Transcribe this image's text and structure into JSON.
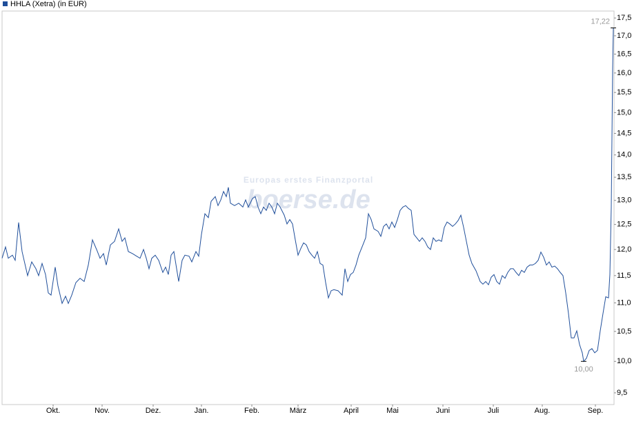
{
  "chart_data": {
    "type": "line",
    "log_y": true,
    "grid": false,
    "legend": "top-left",
    "watermark": [
      "Europas erstes Finanzportal",
      "boerse.de"
    ],
    "max_label": "17,22",
    "min_label": "10,00",
    "xlim": [
      3,
      890
    ],
    "ylim": [
      9.32,
      17.7
    ],
    "xticks": [
      {
        "value": 77,
        "label": "Okt."
      },
      {
        "value": 148,
        "label": "Nov."
      },
      {
        "value": 222,
        "label": "Dez."
      },
      {
        "value": 292,
        "label": "Jan."
      },
      {
        "value": 365,
        "label": "Feb."
      },
      {
        "value": 432,
        "label": "März"
      },
      {
        "value": 509,
        "label": "April"
      },
      {
        "value": 569,
        "label": "Mai"
      },
      {
        "value": 642,
        "label": "Juni"
      },
      {
        "value": 715,
        "label": "Juli"
      },
      {
        "value": 786,
        "label": "Aug."
      },
      {
        "value": 863,
        "label": "Sep."
      }
    ],
    "yticks": [
      {
        "value": 9.5,
        "label": "9,5"
      },
      {
        "value": 10,
        "label": "10,0"
      },
      {
        "value": 10.5,
        "label": "10,5"
      },
      {
        "value": 11,
        "label": "11,0"
      },
      {
        "value": 11.5,
        "label": "11,5"
      },
      {
        "value": 12,
        "label": "12,0"
      },
      {
        "value": 12.5,
        "label": "12,5"
      },
      {
        "value": 13,
        "label": "13,0"
      },
      {
        "value": 13.5,
        "label": "13,5"
      },
      {
        "value": 14,
        "label": "14,0"
      },
      {
        "value": 14.5,
        "label": "14,5"
      },
      {
        "value": 15,
        "label": "15,0"
      },
      {
        "value": 15.5,
        "label": "15,5"
      },
      {
        "value": 16,
        "label": "16,0"
      },
      {
        "value": 16.5,
        "label": "16,5"
      },
      {
        "value": 17,
        "label": "17,0"
      },
      {
        "value": 17.5,
        "label": "17,5"
      }
    ],
    "x": [
      3,
      8,
      12,
      18,
      22,
      27,
      32,
      40,
      46,
      52,
      56,
      61,
      66,
      70,
      74,
      80,
      84,
      90,
      95,
      99,
      104,
      110,
      116,
      122,
      128,
      134,
      140,
      145,
      150,
      154,
      160,
      166,
      172,
      177,
      181,
      186,
      192,
      198,
      203,
      208,
      212,
      216,
      220,
      225,
      230,
      236,
      240,
      244,
      248,
      252,
      256,
      259,
      264,
      268,
      274,
      278,
      284,
      288,
      292,
      297,
      302,
      306,
      312,
      316,
      320,
      324,
      328,
      331,
      334,
      340,
      346,
      352,
      356,
      360,
      366,
      370,
      374,
      378,
      382,
      386,
      390,
      394,
      398,
      402,
      406,
      412,
      416,
      420,
      424,
      428,
      432,
      436,
      440,
      444,
      448,
      452,
      456,
      460,
      464,
      468,
      472,
      476,
      480,
      484,
      490,
      496,
      500,
      504,
      508,
      512,
      516,
      520,
      526,
      530,
      534,
      538,
      542,
      548,
      552,
      556,
      560,
      564,
      568,
      572,
      576,
      580,
      584,
      588,
      592,
      596,
      600,
      604,
      608,
      612,
      616,
      620,
      624,
      628,
      632,
      636,
      640,
      644,
      648,
      652,
      656,
      660,
      664,
      668,
      672,
      676,
      680,
      684,
      690,
      696,
      700,
      704,
      708,
      712,
      716,
      720,
      724,
      728,
      732,
      736,
      740,
      744,
      748,
      752,
      756,
      760,
      764,
      768,
      772,
      776,
      780,
      784,
      788,
      792,
      796,
      800,
      804,
      808,
      812,
      816,
      820,
      824,
      828,
      832,
      836,
      840,
      844,
      846,
      850,
      854,
      858,
      862,
      866,
      870,
      874,
      878,
      882,
      884,
      886,
      888,
      889
    ],
    "series": [
      {
        "name": "HHLA (Xetra) (in EUR)",
        "color": "#1f4e9a",
        "values": [
          11.83,
          12.05,
          11.83,
          11.89,
          11.79,
          12.54,
          11.96,
          11.5,
          11.76,
          11.63,
          11.5,
          11.73,
          11.52,
          11.18,
          11.14,
          11.66,
          11.31,
          10.99,
          11.12,
          10.99,
          11.14,
          11.37,
          11.45,
          11.39,
          11.7,
          12.19,
          12.0,
          11.83,
          11.92,
          11.7,
          12.09,
          12.16,
          12.41,
          12.16,
          12.23,
          11.96,
          11.92,
          11.87,
          11.83,
          12.0,
          11.83,
          11.63,
          11.83,
          11.89,
          11.79,
          11.56,
          11.66,
          11.52,
          11.89,
          11.96,
          11.63,
          11.39,
          11.79,
          11.89,
          11.87,
          11.76,
          11.96,
          11.87,
          12.3,
          12.72,
          12.64,
          12.98,
          13.08,
          12.89,
          13.01,
          13.19,
          13.08,
          13.28,
          12.94,
          12.89,
          12.94,
          12.86,
          13.01,
          12.86,
          13.04,
          13.08,
          12.86,
          12.72,
          12.86,
          12.79,
          12.94,
          12.86,
          12.72,
          12.94,
          12.86,
          12.69,
          12.51,
          12.6,
          12.51,
          12.19,
          11.89,
          12.02,
          12.13,
          12.09,
          11.96,
          11.89,
          11.83,
          11.96,
          11.73,
          11.7,
          11.37,
          11.09,
          11.22,
          11.24,
          11.22,
          11.14,
          11.63,
          11.39,
          11.52,
          11.56,
          11.7,
          11.89,
          12.09,
          12.23,
          12.72,
          12.6,
          12.41,
          12.36,
          12.26,
          12.46,
          12.51,
          12.41,
          12.55,
          12.44,
          12.6,
          12.79,
          12.86,
          12.89,
          12.83,
          12.79,
          12.3,
          12.23,
          12.16,
          12.23,
          12.16,
          12.05,
          12.0,
          12.23,
          12.16,
          12.19,
          12.16,
          12.44,
          12.55,
          12.51,
          12.46,
          12.51,
          12.58,
          12.69,
          12.44,
          12.16,
          11.89,
          11.73,
          11.59,
          11.39,
          11.34,
          11.39,
          11.33,
          11.47,
          11.52,
          11.39,
          11.34,
          11.5,
          11.45,
          11.56,
          11.63,
          11.63,
          11.56,
          11.5,
          11.6,
          11.56,
          11.66,
          11.7,
          11.7,
          11.73,
          11.79,
          11.95,
          11.85,
          11.7,
          11.76,
          11.66,
          11.68,
          11.63,
          11.56,
          11.5,
          11.18,
          10.81,
          10.39,
          10.39,
          10.51,
          10.28,
          10.14,
          10.0,
          10.05,
          10.18,
          10.21,
          10.14,
          10.18,
          10.51,
          10.81,
          11.11,
          11.09,
          11.52,
          12.86,
          16.11,
          17.22
        ]
      }
    ]
  }
}
